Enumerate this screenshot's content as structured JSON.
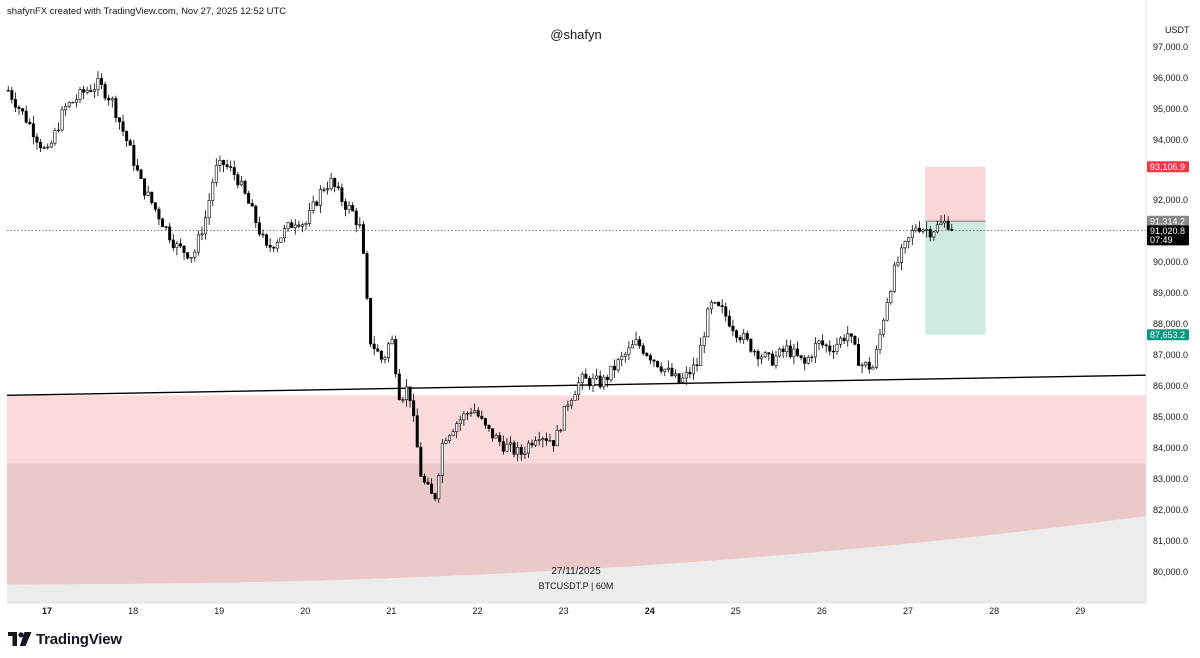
{
  "header": {
    "credit": "shafynFX created with TradingView.com, Nov 27, 2025 12:52 UTC",
    "watermark": "@shafyn"
  },
  "info": {
    "date": "27/11/2025",
    "symbol_line": "BTCUSDT.P | 60M"
  },
  "footer": {
    "brand": "TradingView",
    "logo_icon": "tradingview-logo-icon"
  },
  "colors": {
    "up_candle": "#ffffff",
    "down_candle": "#000000",
    "zone_light": "#fadadd",
    "zone_dark": "#ebc8ca",
    "stop_zone": "#f9d4d8",
    "target_zone": "#cdebe3",
    "stop_badge": "#f23645",
    "target_badge": "#089981",
    "entry_badge": "#888888",
    "price_badge": "#000000"
  },
  "chart_data": {
    "type": "candlestick",
    "symbol": "BTCUSDT.P",
    "timeframe": "60M",
    "currency": "USDT",
    "y_range": [
      79200,
      97800
    ],
    "x_range_day": [
      16.55,
      29.8
    ],
    "y_ticks": [
      97000,
      96000,
      95000,
      94000,
      92000,
      90000,
      89000,
      88000,
      87000,
      86000,
      85000,
      84000,
      83000,
      82000,
      81000,
      80000
    ],
    "y_tick_labels": [
      "97,000.0",
      "96,000.0",
      "95,000.0",
      "94,000.0",
      "92,000.0",
      "90,000.0",
      "89,000.0",
      "88,000.0",
      "87,000.0",
      "86,000.0",
      "85,000.0",
      "84,000.0",
      "83,000.0",
      "82,000.0",
      "81,000.0",
      "80,000.0"
    ],
    "x_ticks": [
      {
        "day": 17,
        "label": "17",
        "bold": true
      },
      {
        "day": 18,
        "label": "18",
        "bold": false
      },
      {
        "day": 19,
        "label": "19",
        "bold": false
      },
      {
        "day": 20,
        "label": "20",
        "bold": false
      },
      {
        "day": 21,
        "label": "21",
        "bold": false
      },
      {
        "day": 22,
        "label": "22",
        "bold": false
      },
      {
        "day": 23,
        "label": "23",
        "bold": false
      },
      {
        "day": 24,
        "label": "24",
        "bold": true
      },
      {
        "day": 25,
        "label": "25",
        "bold": false
      },
      {
        "day": 26,
        "label": "26",
        "bold": false
      },
      {
        "day": 27,
        "label": "27",
        "bold": false
      },
      {
        "day": 28,
        "label": "28",
        "bold": false
      },
      {
        "day": 29,
        "label": "29",
        "bold": false
      }
    ],
    "price_path": [
      [
        16.55,
        95600
      ],
      [
        16.8,
        94500
      ],
      [
        17.0,
        93500
      ],
      [
        17.2,
        95000
      ],
      [
        17.45,
        95600
      ],
      [
        17.6,
        95800
      ],
      [
        17.75,
        95300
      ],
      [
        17.95,
        93800
      ],
      [
        18.1,
        92500
      ],
      [
        18.3,
        91500
      ],
      [
        18.5,
        90500
      ],
      [
        18.7,
        90200
      ],
      [
        18.85,
        91500
      ],
      [
        18.95,
        93000
      ],
      [
        19.05,
        93200
      ],
      [
        19.2,
        92800
      ],
      [
        19.4,
        91500
      ],
      [
        19.55,
        90400
      ],
      [
        19.7,
        90800
      ],
      [
        19.9,
        91400
      ],
      [
        20.0,
        91200
      ],
      [
        20.1,
        91800
      ],
      [
        20.2,
        92400
      ],
      [
        20.3,
        92600
      ],
      [
        20.45,
        91900
      ],
      [
        20.55,
        91600
      ],
      [
        20.65,
        91000
      ],
      [
        20.75,
        87500
      ],
      [
        20.9,
        86800
      ],
      [
        21.0,
        87600
      ],
      [
        21.1,
        85600
      ],
      [
        21.2,
        86000
      ],
      [
        21.35,
        83000
      ],
      [
        21.5,
        82300
      ],
      [
        21.6,
        84300
      ],
      [
        21.75,
        84800
      ],
      [
        21.95,
        85300
      ],
      [
        22.1,
        84600
      ],
      [
        22.3,
        84100
      ],
      [
        22.5,
        83800
      ],
      [
        22.7,
        84500
      ],
      [
        22.9,
        84200
      ],
      [
        23.05,
        85500
      ],
      [
        23.2,
        86200
      ],
      [
        23.45,
        86100
      ],
      [
        23.65,
        86800
      ],
      [
        23.85,
        87400
      ],
      [
        24.0,
        87000
      ],
      [
        24.15,
        86600
      ],
      [
        24.35,
        86100
      ],
      [
        24.55,
        86700
      ],
      [
        24.7,
        88600
      ],
      [
        24.85,
        88400
      ],
      [
        25.0,
        87800
      ],
      [
        25.2,
        87200
      ],
      [
        25.4,
        86800
      ],
      [
        25.6,
        87200
      ],
      [
        25.8,
        86700
      ],
      [
        25.95,
        87400
      ],
      [
        26.1,
        87200
      ],
      [
        26.3,
        87700
      ],
      [
        26.45,
        86700
      ],
      [
        26.6,
        86600
      ],
      [
        26.75,
        88700
      ],
      [
        26.85,
        89800
      ],
      [
        26.95,
        90400
      ],
      [
        27.1,
        91200
      ],
      [
        27.25,
        91000
      ],
      [
        27.45,
        91300
      ],
      [
        27.55,
        91000
      ]
    ],
    "trendline": {
      "start": [
        16.55,
        85700
      ],
      "end": [
        29.8,
        86350
      ],
      "style": "solid black"
    },
    "supply_zone": {
      "from_price": 85700,
      "to_price": 83500,
      "label": ""
    },
    "demand_zone": {
      "from_price": 83500,
      "to_price": 79600,
      "label": ""
    },
    "position": {
      "type": "short",
      "start_day": 27.2,
      "end_day": 27.9,
      "stop": 93106.9,
      "entry": 91314.2,
      "target": 87653.2
    },
    "badges": [
      {
        "price": 93106.9,
        "text": "93,106.9",
        "kind": "stop"
      },
      {
        "price": 91314.2,
        "text": "91,314.2",
        "kind": "entry"
      },
      {
        "price": 91020.8,
        "text": "91,020.8",
        "sub": "07:49",
        "kind": "last"
      },
      {
        "price": 87653.2,
        "text": "87,653.2",
        "kind": "target"
      }
    ],
    "last_price": 91020.8,
    "countdown": "07:49"
  }
}
